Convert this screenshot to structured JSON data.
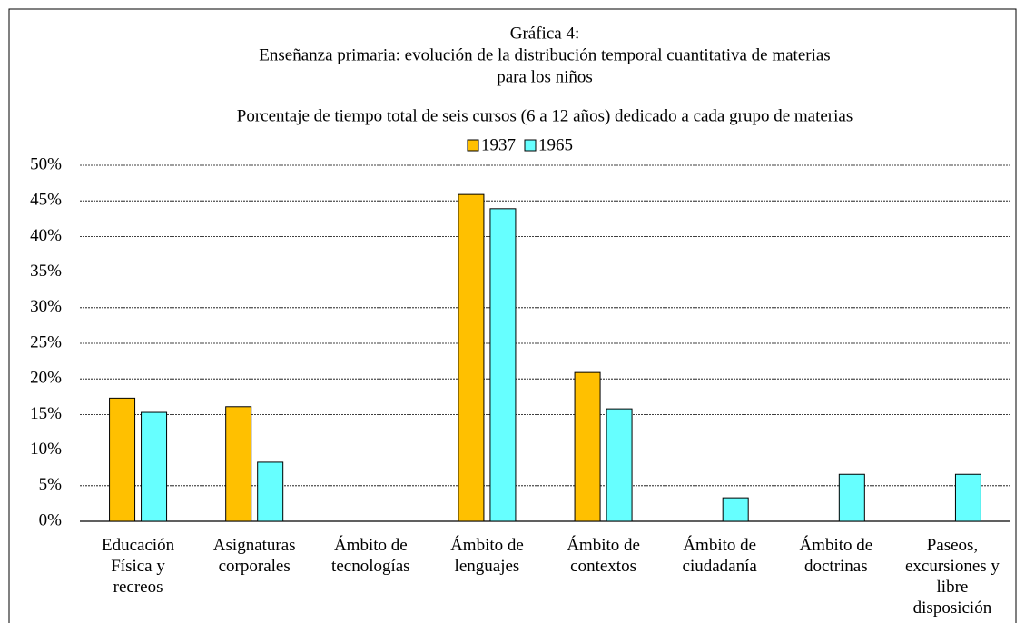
{
  "chart_data": {
    "type": "bar",
    "title": [
      "Gráfica 4:",
      "Enseñanza primaria: evolución de la distribución temporal cuantitativa de materias",
      "para los niños"
    ],
    "subtitle": "Porcentaje de tiempo total de seis cursos (6 a 12 años) dedicado a cada grupo de materias",
    "categories": [
      "Educación Física y recreos",
      "Asignaturas corporales",
      "Ámbito de tecnologías",
      "Ámbito de lenguajes",
      "Ámbito de contextos",
      "Ámbito de ciudadanía",
      "Ámbito de doctrinas",
      "Paseos, excursiones y libre disposición"
    ],
    "series": [
      {
        "name": "1937",
        "color": "#ffc000",
        "values": [
          17.3,
          16.1,
          0,
          45.9,
          20.9,
          0,
          0,
          0
        ]
      },
      {
        "name": "1965",
        "color": "#66ffff",
        "values": [
          15.3,
          8.3,
          0,
          43.9,
          15.8,
          3.3,
          6.6,
          6.6
        ]
      }
    ],
    "ylim": [
      0,
      50
    ],
    "yticks": [
      {
        "value": 0,
        "label": "0%"
      },
      {
        "value": 5,
        "label": "5%"
      },
      {
        "value": 10,
        "label": "10%"
      },
      {
        "value": 15,
        "label": "15%"
      },
      {
        "value": 20,
        "label": "20%"
      },
      {
        "value": 25,
        "label": "25%"
      },
      {
        "value": 30,
        "label": "30%"
      },
      {
        "value": 35,
        "label": "35%"
      },
      {
        "value": 40,
        "label": "40%"
      },
      {
        "value": 45,
        "label": "45%"
      },
      {
        "value": 50,
        "label": "50%"
      }
    ],
    "grid": true,
    "legend": "top"
  }
}
